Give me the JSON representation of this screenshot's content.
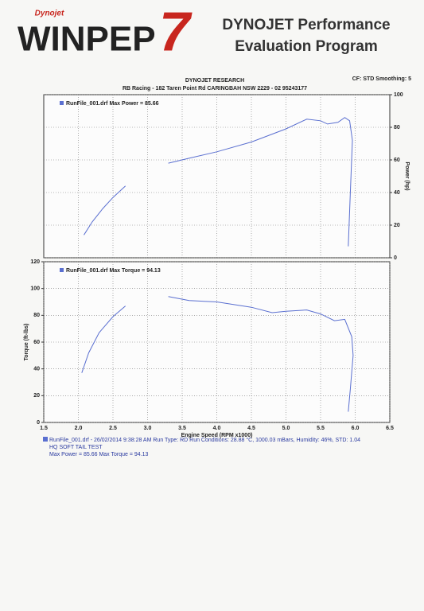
{
  "header": {
    "logo_small": "Dynojet",
    "logo": "WINPEP",
    "logo_num": "7",
    "title_line1": "DYNOJET Performance",
    "title_line2": "Evaluation Program",
    "company": "DYNOJET RESEARCH",
    "settings": "CF: STD  Smoothing: 5",
    "address": "RB Racing - 182 Taren Point Rd CARINGBAH NSW 2229 - 02 95243177"
  },
  "chart_data": [
    {
      "type": "line",
      "yaxis_position": "right",
      "ylabel": "Power (hp)",
      "grid": true,
      "xlim": [
        1.5,
        6.5
      ],
      "xticks": [
        2,
        2.5,
        3,
        3.5,
        4,
        4.5,
        5,
        5.5,
        6
      ],
      "ylim": [
        0,
        100
      ],
      "yticks": [
        0,
        20,
        40,
        60,
        80,
        100
      ],
      "x": [
        2.08,
        2.2,
        2.35,
        2.5,
        2.68,
        3.0,
        3.3,
        3.6,
        4.0,
        4.5,
        5.0,
        5.3,
        5.5,
        5.6,
        5.75,
        5.85,
        5.92,
        5.96,
        5.93,
        5.9
      ],
      "series": [
        {
          "name": "RunFile_001.drf Max Power = 85.66",
          "color": "#5a6fd0",
          "values": [
            14,
            22,
            30,
            37,
            44,
            null,
            58,
            61,
            65,
            71,
            79,
            85,
            84,
            82,
            83,
            86,
            84,
            72,
            40,
            7
          ]
        }
      ]
    },
    {
      "type": "line",
      "yaxis_position": "left",
      "ylabel": "Torque (ft-lbs)",
      "xlabel": "Engine Speed (RPM x1000)",
      "grid": true,
      "xlim": [
        1.5,
        6.5
      ],
      "xticks": [
        1.5,
        {
          "value": 2,
          "label": "2.0"
        },
        2.5,
        {
          "value": 3,
          "label": "3.0"
        },
        3.5,
        {
          "value": 4,
          "label": "4.0"
        },
        4.5,
        {
          "value": 5,
          "label": "5.0"
        },
        5.5,
        {
          "value": 6,
          "label": "6.0"
        },
        6.5
      ],
      "ylim": [
        0,
        120
      ],
      "yticks": [
        0,
        20,
        40,
        60,
        80,
        100,
        120
      ],
      "x": [
        2.05,
        2.15,
        2.3,
        2.5,
        2.68,
        3.0,
        3.3,
        3.6,
        4.0,
        4.5,
        4.8,
        5.0,
        5.3,
        5.5,
        5.7,
        5.85,
        5.95,
        5.97,
        5.93,
        5.9
      ],
      "series": [
        {
          "name": "RunFile_001.drf Max Torque = 94.13",
          "color": "#5a6fd0",
          "values": [
            37,
            52,
            67,
            79,
            87,
            null,
            94,
            91,
            90,
            86,
            82,
            83,
            84,
            81,
            76,
            77,
            64,
            50,
            25,
            8
          ]
        }
      ]
    }
  ],
  "footer": {
    "lines": [
      "RunFile_001.drf - 26/02/2014 9:38:28 AM  Run Type: RD  Run Conditions: 28.88 °C, 1000.03 mBars,  Humidity: 46%, STD: 1.04",
      "HQ SOFT TAIL TEST",
      "Max Power = 85.66  Max Torque = 94.13"
    ]
  }
}
